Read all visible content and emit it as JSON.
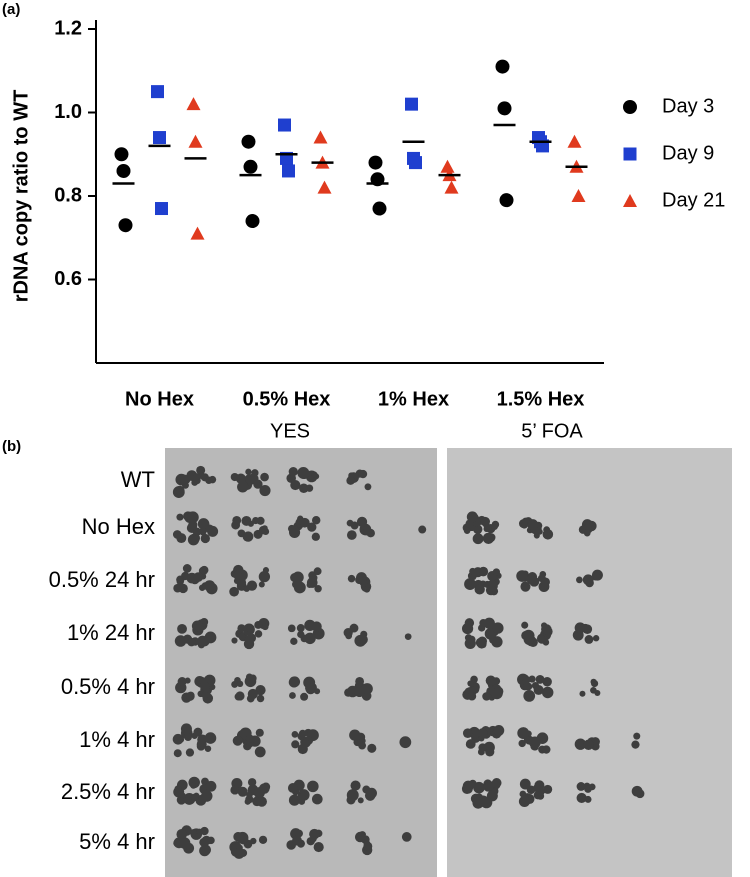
{
  "chart_data": {
    "type": "dotplot",
    "panel_label": "(a)",
    "y_label": "rDNA copy ratio to WT",
    "categories": [
      "No Hex",
      "0.5% Hex",
      "1% Hex",
      "1.5% Hex"
    ],
    "ylim": [
      0.4,
      1.2
    ],
    "yticks": [
      0.6,
      0.8,
      {
        "value": 1,
        "label": "1.0"
      },
      1.2
    ],
    "legend": "right",
    "series": [
      {
        "name": "Day 3",
        "color": "#000000",
        "marker": "circle",
        "values": [
          [
            0.9,
            0.86,
            0.73
          ],
          [
            0.93,
            0.87,
            0.74
          ],
          [
            0.88,
            0.84,
            0.77
          ],
          [
            1.11,
            1.01,
            0.79
          ]
        ],
        "means": [
          0.83,
          0.85,
          0.83,
          0.97
        ]
      },
      {
        "name": "Day 9",
        "color": "#1f3fcf",
        "marker": "square",
        "values": [
          [
            1.05,
            0.94,
            0.77
          ],
          [
            0.97,
            0.89,
            0.86
          ],
          [
            1.02,
            0.89,
            0.88
          ],
          [
            0.94,
            0.93,
            0.92
          ]
        ],
        "means": [
          0.92,
          0.9,
          0.93,
          0.93
        ]
      },
      {
        "name": "Day 21",
        "color": "#e03a1e",
        "marker": "triangle",
        "values": [
          [
            1.02,
            0.93,
            0.71
          ],
          [
            0.94,
            0.88,
            0.82
          ],
          [
            0.87,
            0.85,
            0.82
          ],
          [
            0.93,
            0.87,
            0.8
          ]
        ],
        "means": [
          0.89,
          0.88,
          0.85,
          0.87
        ]
      }
    ]
  },
  "panel_b": {
    "panel_label": "(b)",
    "plates": [
      "YES",
      "5’ FOA"
    ],
    "rows": [
      "WT",
      "No Hex",
      "0.5% 24 hr",
      "1% 24 hr",
      "0.5% 4 hr",
      "1% 4 hr",
      "2.5% 4 hr",
      "5% 4 hr"
    ]
  }
}
